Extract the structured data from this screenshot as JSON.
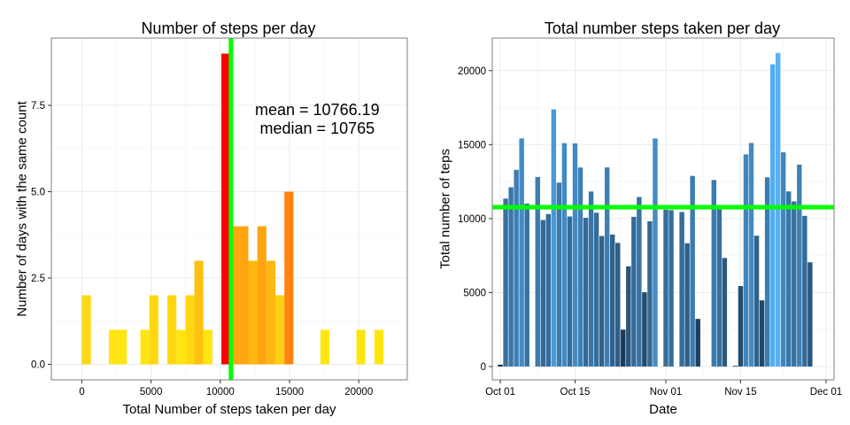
{
  "chart_data": [
    {
      "type": "bar",
      "title": "Number of steps per day",
      "xlabel": "Total Number of steps taken per day",
      "ylabel": "Number of days with the same count",
      "xlim": [
        -2200,
        23500
      ],
      "ylim": [
        -0.45,
        9.45
      ],
      "binwidth": 650,
      "x_ticks": [
        0,
        5000,
        10000,
        15000,
        20000
      ],
      "x_tick_labels": [
        "0",
        "5000",
        "10000",
        "15000",
        "20000"
      ],
      "y_ticks": [
        0,
        2.5,
        5,
        7.5
      ],
      "y_tick_labels": [
        "0.0",
        "2.5",
        "5.0",
        "7.5"
      ],
      "grid": true,
      "fill_scale": {
        "low": "#ffeb10",
        "high": "#ff0000",
        "note": "bar fill colored by count"
      },
      "bars": [
        {
          "x": 325,
          "count": 2,
          "color": "#ffd710"
        },
        {
          "x": 2275,
          "count": 1,
          "color": "#ffe510"
        },
        {
          "x": 2925,
          "count": 1,
          "color": "#ffe510"
        },
        {
          "x": 4550,
          "count": 1,
          "color": "#ffe510"
        },
        {
          "x": 5200,
          "count": 2,
          "color": "#ffd710"
        },
        {
          "x": 6500,
          "count": 2,
          "color": "#ffd710"
        },
        {
          "x": 7150,
          "count": 1,
          "color": "#ffe510"
        },
        {
          "x": 7800,
          "count": 2,
          "color": "#ffd710"
        },
        {
          "x": 8450,
          "count": 3,
          "color": "#ffc110"
        },
        {
          "x": 9100,
          "count": 1,
          "color": "#ffe510"
        },
        {
          "x": 10400,
          "count": 9,
          "color": "#ff0000"
        },
        {
          "x": 11050,
          "count": 4,
          "color": "#ffa510"
        },
        {
          "x": 11700,
          "count": 4,
          "color": "#ffa510"
        },
        {
          "x": 12350,
          "count": 3,
          "color": "#ffb810"
        },
        {
          "x": 13000,
          "count": 4,
          "color": "#ffa510"
        },
        {
          "x": 13650,
          "count": 3,
          "color": "#ffb810"
        },
        {
          "x": 14300,
          "count": 2,
          "color": "#ffd010"
        },
        {
          "x": 14950,
          "count": 5,
          "color": "#ff8410"
        },
        {
          "x": 17550,
          "count": 1,
          "color": "#ffe510"
        },
        {
          "x": 20150,
          "count": 1,
          "color": "#ffe510"
        },
        {
          "x": 21450,
          "count": 1,
          "color": "#ffe510"
        }
      ],
      "vline": {
        "x": 10766.19,
        "color": "#00ff00"
      },
      "annotation_lines": [
        "mean = 10766.19",
        "median = 10765"
      ],
      "annotation_anchor": {
        "x": 17000,
        "y": 7.1
      }
    },
    {
      "type": "bar",
      "title": "Total number steps taken per day",
      "xlabel": "Date",
      "ylabel": "Total number of teps",
      "x_start_date": "2012-10-01",
      "xlim_days": [
        -1.5,
        62.5
      ],
      "ylim": [
        -900,
        22200
      ],
      "x_ticks_days": [
        0,
        14,
        31,
        45,
        61
      ],
      "x_tick_labels": [
        "Oct 01",
        "Oct 15",
        "Nov 01",
        "Nov 15",
        "Dec 01"
      ],
      "y_ticks": [
        0,
        5000,
        10000,
        15000,
        20000
      ],
      "y_tick_labels": [
        "0",
        "5000",
        "10000",
        "15000",
        "20000"
      ],
      "grid": true,
      "fill_scale": {
        "low": "#132b43",
        "high": "#56b1f7",
        "note": "bar fill colored by value"
      },
      "hline": {
        "y": 10766.19,
        "color": "#00ff00"
      },
      "values": [
        126,
        11352,
        12116,
        13294,
        15420,
        11015,
        null,
        12811,
        9900,
        10304,
        17382,
        12426,
        15098,
        10139,
        15084,
        13452,
        10056,
        11829,
        10395,
        8821,
        13460,
        8918,
        8355,
        2492,
        6778,
        10119,
        11458,
        5018,
        9819,
        15414,
        null,
        10600,
        10571,
        null,
        10439,
        8334,
        12883,
        3219,
        null,
        null,
        12608,
        10765,
        7336,
        null,
        41,
        5441,
        14339,
        15110,
        8841,
        4472,
        12787,
        20427,
        21194,
        14478,
        11834,
        11162,
        13646,
        10183,
        7047
      ]
    }
  ]
}
